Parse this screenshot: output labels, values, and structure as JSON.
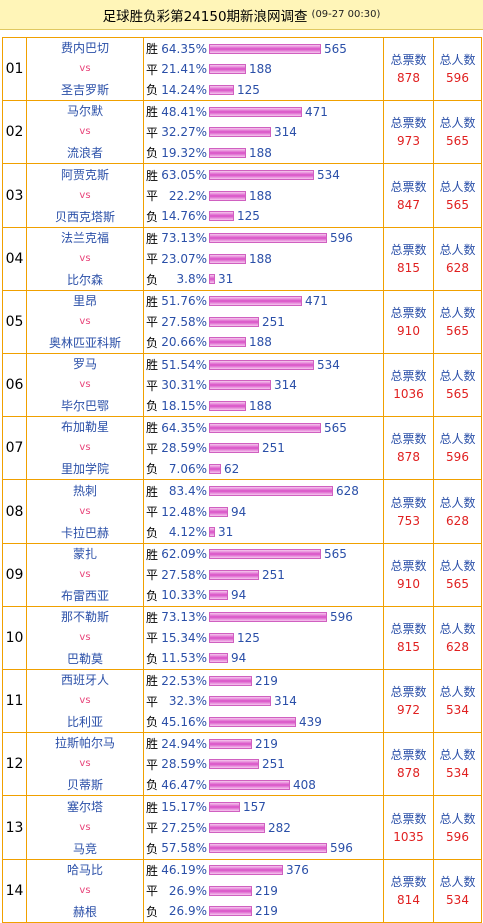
{
  "title": {
    "main": "足球胜负彩第24150期新浪网调查",
    "time": "(09-27 00:30)"
  },
  "labels": {
    "vs": "vs",
    "win": "胜",
    "draw": "平",
    "lose": "负",
    "total_votes": "总票数",
    "total_people": "总人数"
  },
  "colors": {
    "title_bg": "#fff5b8",
    "border": "#f0a000",
    "team_text": "#2a4fa8",
    "vs_text": "#e8457a",
    "value_red": "#e02020",
    "bar": "#d84fc6"
  },
  "matches": [
    {
      "no": "01",
      "home": "费内巴切",
      "away": "圣吉罗斯",
      "win": {
        "pct": "64.35%",
        "count": "565",
        "value": 565
      },
      "draw": {
        "pct": "21.41%",
        "count": "188",
        "value": 188
      },
      "lose": {
        "pct": "14.24%",
        "count": "125",
        "value": 125
      },
      "total_votes": "878",
      "total_people": "596"
    },
    {
      "no": "02",
      "home": "马尔默",
      "away": "流浪者",
      "win": {
        "pct": "48.41%",
        "count": "471",
        "value": 471
      },
      "draw": {
        "pct": "32.27%",
        "count": "314",
        "value": 314
      },
      "lose": {
        "pct": "19.32%",
        "count": "188",
        "value": 188
      },
      "total_votes": "973",
      "total_people": "565"
    },
    {
      "no": "03",
      "home": "阿贾克斯",
      "away": "贝西克塔斯",
      "win": {
        "pct": "63.05%",
        "count": "534",
        "value": 534
      },
      "draw": {
        "pct": "22.2%",
        "count": "188",
        "value": 188
      },
      "lose": {
        "pct": "14.76%",
        "count": "125",
        "value": 125
      },
      "total_votes": "847",
      "total_people": "565"
    },
    {
      "no": "04",
      "home": "法兰克福",
      "away": "比尔森",
      "win": {
        "pct": "73.13%",
        "count": "596",
        "value": 596
      },
      "draw": {
        "pct": "23.07%",
        "count": "188",
        "value": 188
      },
      "lose": {
        "pct": "3.8%",
        "count": "31",
        "value": 31
      },
      "total_votes": "815",
      "total_people": "628"
    },
    {
      "no": "05",
      "home": "里昂",
      "away": "奥林匹亚科斯",
      "win": {
        "pct": "51.76%",
        "count": "471",
        "value": 471
      },
      "draw": {
        "pct": "27.58%",
        "count": "251",
        "value": 251
      },
      "lose": {
        "pct": "20.66%",
        "count": "188",
        "value": 188
      },
      "total_votes": "910",
      "total_people": "565"
    },
    {
      "no": "06",
      "home": "罗马",
      "away": "毕尔巴鄂",
      "win": {
        "pct": "51.54%",
        "count": "534",
        "value": 534
      },
      "draw": {
        "pct": "30.31%",
        "count": "314",
        "value": 314
      },
      "lose": {
        "pct": "18.15%",
        "count": "188",
        "value": 188
      },
      "total_votes": "1036",
      "total_people": "565"
    },
    {
      "no": "07",
      "home": "布加勒星",
      "away": "里加学院",
      "win": {
        "pct": "64.35%",
        "count": "565",
        "value": 565
      },
      "draw": {
        "pct": "28.59%",
        "count": "251",
        "value": 251
      },
      "lose": {
        "pct": "7.06%",
        "count": "62",
        "value": 62
      },
      "total_votes": "878",
      "total_people": "596"
    },
    {
      "no": "08",
      "home": "热刺",
      "away": "卡拉巴赫",
      "win": {
        "pct": "83.4%",
        "count": "628",
        "value": 628
      },
      "draw": {
        "pct": "12.48%",
        "count": "94",
        "value": 94
      },
      "lose": {
        "pct": "4.12%",
        "count": "31",
        "value": 31
      },
      "total_votes": "753",
      "total_people": "628"
    },
    {
      "no": "09",
      "home": "蒙扎",
      "away": "布雷西亚",
      "win": {
        "pct": "62.09%",
        "count": "565",
        "value": 565
      },
      "draw": {
        "pct": "27.58%",
        "count": "251",
        "value": 251
      },
      "lose": {
        "pct": "10.33%",
        "count": "94",
        "value": 94
      },
      "total_votes": "910",
      "total_people": "565"
    },
    {
      "no": "10",
      "home": "那不勒斯",
      "away": "巴勒莫",
      "win": {
        "pct": "73.13%",
        "count": "596",
        "value": 596
      },
      "draw": {
        "pct": "15.34%",
        "count": "125",
        "value": 125
      },
      "lose": {
        "pct": "11.53%",
        "count": "94",
        "value": 94
      },
      "total_votes": "815",
      "total_people": "628"
    },
    {
      "no": "11",
      "home": "西班牙人",
      "away": "比利亚",
      "win": {
        "pct": "22.53%",
        "count": "219",
        "value": 219
      },
      "draw": {
        "pct": "32.3%",
        "count": "314",
        "value": 314
      },
      "lose": {
        "pct": "45.16%",
        "count": "439",
        "value": 439
      },
      "total_votes": "972",
      "total_people": "534"
    },
    {
      "no": "12",
      "home": "拉斯帕尔马",
      "away": "贝蒂斯",
      "win": {
        "pct": "24.94%",
        "count": "219",
        "value": 219
      },
      "draw": {
        "pct": "28.59%",
        "count": "251",
        "value": 251
      },
      "lose": {
        "pct": "46.47%",
        "count": "408",
        "value": 408
      },
      "total_votes": "878",
      "total_people": "534"
    },
    {
      "no": "13",
      "home": "塞尔塔",
      "away": "马竞",
      "win": {
        "pct": "15.17%",
        "count": "157",
        "value": 157
      },
      "draw": {
        "pct": "27.25%",
        "count": "282",
        "value": 282
      },
      "lose": {
        "pct": "57.58%",
        "count": "596",
        "value": 596
      },
      "total_votes": "1035",
      "total_people": "596"
    },
    {
      "no": "14",
      "home": "哈马比",
      "away": "赫根",
      "win": {
        "pct": "46.19%",
        "count": "376",
        "value": 376
      },
      "draw": {
        "pct": "26.9%",
        "count": "219",
        "value": 219
      },
      "lose": {
        "pct": "26.9%",
        "count": "219",
        "value": 219
      },
      "total_votes": "814",
      "total_people": "534"
    }
  ]
}
